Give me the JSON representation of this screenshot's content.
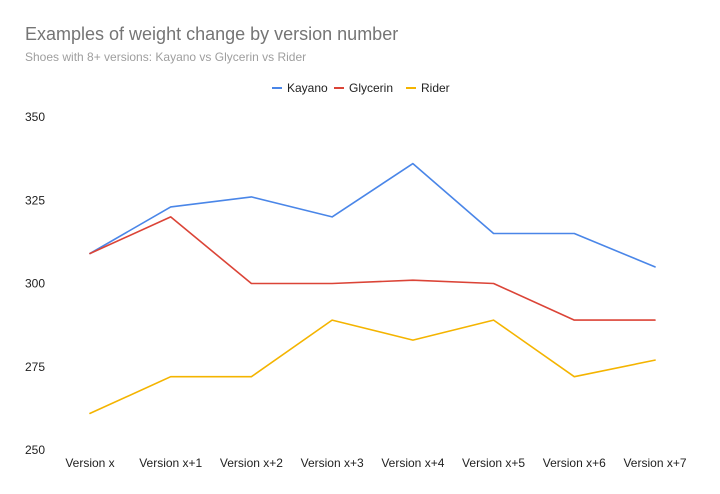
{
  "chart_data": {
    "type": "line",
    "title": "Examples of weight change by version number",
    "subtitle": "Shoes with 8+ versions: Kayano vs Glycerin vs Rider",
    "xlabel": "",
    "ylabel": "",
    "categories": [
      "Version x",
      "Version x+1",
      "Version x+2",
      "Version x+3",
      "Version x+4",
      "Version x+5",
      "Version x+6",
      "Version x+7"
    ],
    "ylim": [
      250,
      350
    ],
    "yticks": [
      250,
      275,
      300,
      325,
      350
    ],
    "grid": false,
    "legend_position": "top",
    "series": [
      {
        "name": "Kayano",
        "color": "#4a86e8",
        "values": [
          309,
          323,
          326,
          320,
          336,
          315,
          315,
          305
        ]
      },
      {
        "name": "Glycerin",
        "color": "#db4437",
        "values": [
          309,
          320,
          300,
          300,
          301,
          300,
          289,
          289
        ]
      },
      {
        "name": "Rider",
        "color": "#f4b400",
        "values": [
          261,
          272,
          272,
          289,
          283,
          289,
          272,
          277
        ]
      }
    ]
  }
}
